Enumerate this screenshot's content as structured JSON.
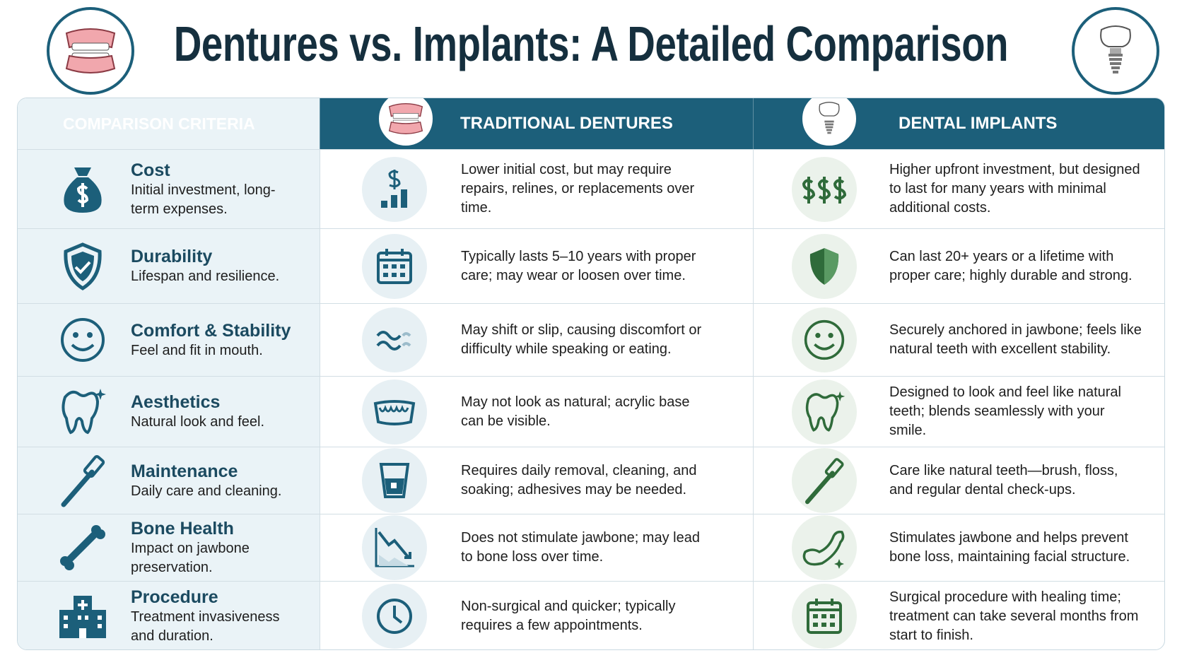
{
  "header": {
    "title": "Dentures vs. Implants: A Detailed Comparison"
  },
  "table": {
    "columns": [
      "COMPARISON CRITERIA",
      "TRADITIONAL DENTURES",
      "DENTAL IMPLANTS"
    ],
    "rows": [
      {
        "criterion": "Cost",
        "description": "Initial investment, long-term expenses.",
        "dentures": "Lower initial cost, but may require repairs, relines, or replacements over time.",
        "implants": "Higher upfront investment, but designed to last for many years with minimal additional costs."
      },
      {
        "criterion": "Durability",
        "description": "Lifespan and resilience.",
        "dentures": "Typically lasts 5–10 years with proper care; may wear or loosen over time.",
        "implants": "Can last 20+ years or a lifetime with proper care; highly durable and strong."
      },
      {
        "criterion": "Comfort & Stability",
        "description": "Feel and fit in mouth.",
        "dentures": "May shift or slip, causing discomfort or difficulty while speaking or eating.",
        "implants": "Securely anchored in jawbone; feels like natural teeth with excellent stability."
      },
      {
        "criterion": "Aesthetics",
        "description": "Natural look and feel.",
        "dentures": "May not look as natural; acrylic base can be visible.",
        "implants": "Designed to look and feel like natural teeth; blends seamlessly with your smile."
      },
      {
        "criterion": "Maintenance",
        "description": "Daily care and cleaning.",
        "dentures": "Requires daily removal, cleaning, and soaking; adhesives may be needed.",
        "implants": "Care like natural teeth—brush, floss, and regular dental check-ups."
      },
      {
        "criterion": "Bone Health",
        "description": "Impact on jawbone preservation.",
        "dentures": "Does not stimulate jawbone; may lead to bone loss over time.",
        "implants": "Stimulates jawbone and helps prevent bone loss, maintaining facial structure."
      },
      {
        "criterion": "Procedure",
        "description": "Treatment invasiveness and duration.",
        "dentures": "Non-surgical and quicker; typically requires a few appointments.",
        "implants": "Surgical procedure with healing time; treatment can take several months from start to finish."
      }
    ]
  }
}
